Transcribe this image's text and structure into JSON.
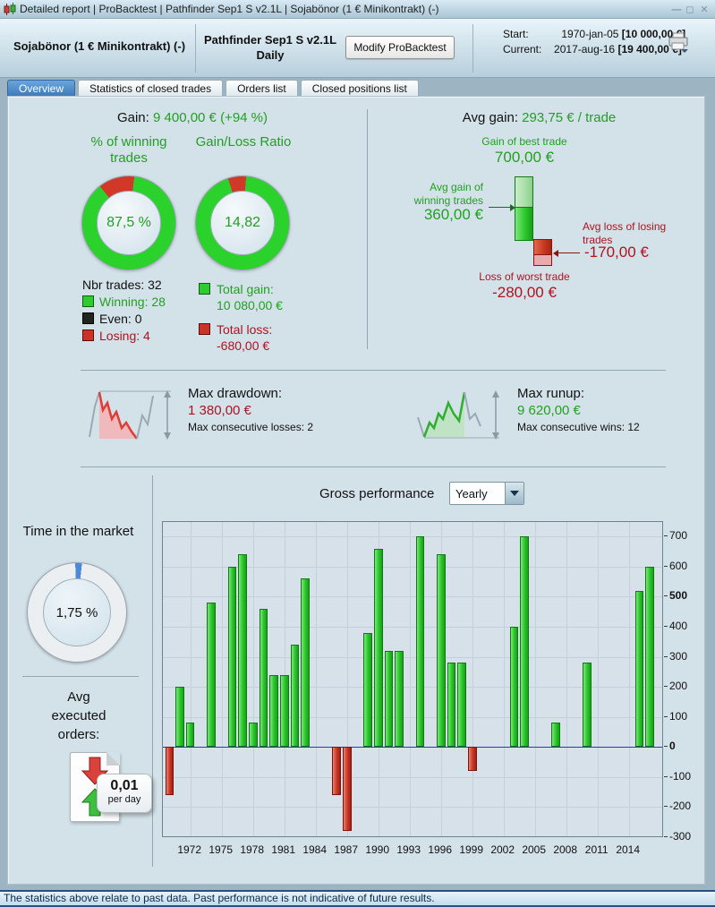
{
  "window": {
    "title": "Detailed report | ProBacktest | Pathfinder Sep1 S v2.1L | Sojabönor (1 € Minikontrakt) (-)"
  },
  "header": {
    "instrument": "Sojabönor (1 € Minikontrakt) (-)",
    "strategy": "Pathfinder Sep1 S v2.1L",
    "timeframe": "Daily",
    "modify_button": "Modify ProBacktest",
    "start_label": "Start:",
    "start_date": "1970-jan-05",
    "start_value": "[10 000,00 €]",
    "current_label": "Current:",
    "current_date": "2017-aug-16",
    "current_value": "[19 400,00 €]"
  },
  "tabs": [
    {
      "label": "Overview",
      "active": true
    },
    {
      "label": "Statistics of closed trades",
      "active": false
    },
    {
      "label": "Orders list",
      "active": false
    },
    {
      "label": "Closed positions list",
      "active": false
    }
  ],
  "overview": {
    "gain": {
      "label": "Gain:",
      "value": "9 400,00 € (+94 %)"
    },
    "winning": {
      "title": "% of winning trades",
      "center": "87,5 %",
      "pct": 87.5
    },
    "ratio": {
      "title": "Gain/Loss Ratio",
      "center": "14,82",
      "value": 14.82
    },
    "legend": {
      "nbr": "Nbr trades: 32",
      "winning": "Winning: 28",
      "even": "Even: 0",
      "losing": "Losing: 4"
    },
    "totals": {
      "gain_label": "Total gain:",
      "gain_value": "10 080,00 €",
      "loss_label": "Total loss:",
      "loss_value": "-680,00 €"
    },
    "avg": {
      "label": "Avg gain:",
      "value": "293,75 € / trade",
      "best_label": "Gain of best trade",
      "best_value": "700,00 €",
      "avg_win_label": "Avg gain of winning trades",
      "avg_win_value": "360,00 €",
      "avg_loss_label": "Avg loss of losing trades",
      "avg_loss_value": "-170,00 €",
      "worst_label": "Loss of worst trade",
      "worst_value": "-280,00 €",
      "bar_values": {
        "best": 700,
        "avg_win": 360,
        "avg_loss": -170,
        "worst": -280
      }
    },
    "drawdown": {
      "label": "Max drawdown:",
      "value": "1 380,00 €",
      "consecutive": "Max consecutive losses: 2"
    },
    "runup": {
      "label": "Max runup:",
      "value": "9 620,00 €",
      "consecutive": "Max consecutive wins: 12"
    },
    "time_in_market": {
      "title": "Time in the market",
      "value": "1,75 %",
      "percent": 1.75
    },
    "avg_orders": {
      "title": "Avg executed orders:",
      "value": "0,01",
      "unit": "per day"
    },
    "gross_perf": {
      "title": "Gross performance",
      "period": "Yearly"
    }
  },
  "chart_data": {
    "type": "bar",
    "title": "Gross performance (Yearly)",
    "series": [
      {
        "year": 1970,
        "value": -160
      },
      {
        "year": 1971,
        "value": 200
      },
      {
        "year": 1972,
        "value": 80
      },
      {
        "year": 1974,
        "value": 480
      },
      {
        "year": 1976,
        "value": 600
      },
      {
        "year": 1977,
        "value": 640
      },
      {
        "year": 1978,
        "value": 80
      },
      {
        "year": 1979,
        "value": 460
      },
      {
        "year": 1980,
        "value": 240
      },
      {
        "year": 1981,
        "value": 240
      },
      {
        "year": 1982,
        "value": 340
      },
      {
        "year": 1983,
        "value": 560
      },
      {
        "year": 1986,
        "value": -160
      },
      {
        "year": 1987,
        "value": -280
      },
      {
        "year": 1989,
        "value": 380
      },
      {
        "year": 1990,
        "value": 660
      },
      {
        "year": 1991,
        "value": 320
      },
      {
        "year": 1992,
        "value": 320
      },
      {
        "year": 1994,
        "value": 700
      },
      {
        "year": 1996,
        "value": 640
      },
      {
        "year": 1997,
        "value": 280
      },
      {
        "year": 1998,
        "value": 280
      },
      {
        "year": 1999,
        "value": -80
      },
      {
        "year": 2003,
        "value": 400
      },
      {
        "year": 2004,
        "value": 700
      },
      {
        "year": 2007,
        "value": 80
      },
      {
        "year": 2010,
        "value": 280
      },
      {
        "year": 2015,
        "value": 520
      },
      {
        "year": 2016,
        "value": 600
      }
    ],
    "x_ticks": [
      1972,
      1975,
      1978,
      1981,
      1984,
      1987,
      1990,
      1993,
      1996,
      1999,
      2002,
      2005,
      2008,
      2011,
      2014
    ],
    "y_ticks": [
      700,
      600,
      500,
      400,
      300,
      200,
      100,
      0,
      -100,
      -200,
      -300
    ],
    "bold_y_ticks": [
      500,
      0
    ],
    "ylim": [
      -304,
      748
    ],
    "grid": true,
    "positive_color": "#2ec82e",
    "negative_color": "#cf3a28",
    "zero_line_color": "#2a35c8"
  },
  "status_bar": "The statistics above relate to past data. Past performance is not indicative of future results."
}
